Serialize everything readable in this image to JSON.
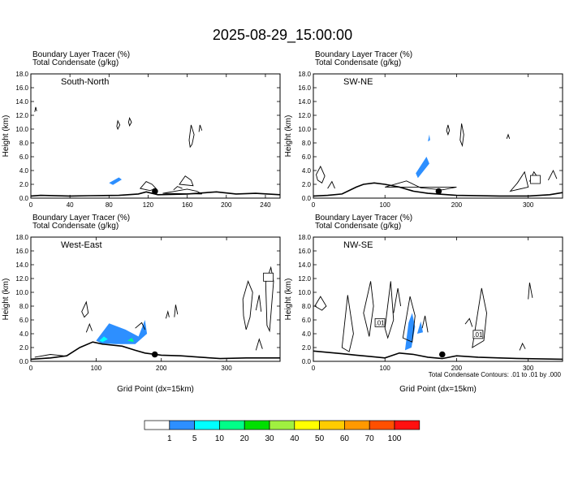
{
  "title": "2025-08-29_15:00:00",
  "colors": {
    "bins": [
      "#ffffff",
      "#2d8fff",
      "#00ffff",
      "#00ff88",
      "#00e000",
      "#a0f040",
      "#ffff00",
      "#ffcc00",
      "#ff9900",
      "#ff5000",
      "#ff1010"
    ],
    "tracer_blue": "#2d8fff",
    "tracer_cyan": "#00ffff",
    "tracer_green": "#00ff88"
  },
  "colorbar": {
    "labels": [
      "1",
      "5",
      "10",
      "20",
      "30",
      "40",
      "50",
      "60",
      "70",
      "100"
    ]
  },
  "footnote": "Total Condensate Contours: .01 to .01 by .000",
  "chart_data": [
    {
      "type": "contour",
      "panel": "South-North",
      "header1": "Boundary Layer Tracer   (%)",
      "header2": "Total Condensate   (g/kg)",
      "ylabel": "Height (km)",
      "xlabel": "",
      "xlim": [
        0,
        255
      ],
      "ylim": [
        0,
        18
      ],
      "xticks": [
        0,
        40,
        80,
        120,
        160,
        200,
        240
      ],
      "yticks": [
        "0.0",
        "2.0",
        "4.0",
        "6.0",
        "8.0",
        "10.0",
        "12.0",
        "14.0",
        "16.0",
        "18.0"
      ],
      "terrain": [
        [
          0,
          0.3
        ],
        [
          10,
          0.4
        ],
        [
          40,
          0.3
        ],
        [
          60,
          0.35
        ],
        [
          90,
          0.4
        ],
        [
          110,
          0.6
        ],
        [
          118,
          0.9
        ],
        [
          130,
          0.5
        ],
        [
          160,
          0.6
        ],
        [
          190,
          0.9
        ],
        [
          210,
          0.6
        ],
        [
          230,
          0.7
        ],
        [
          255,
          0.5
        ]
      ],
      "marker": [
        127,
        1.0
      ],
      "tracer": [
        {
          "level": "5",
          "points": [
            [
              80,
              2.2
            ],
            [
              90,
              3.0
            ],
            [
              93,
              2.7
            ],
            [
              84,
              1.9
            ]
          ]
        }
      ],
      "condensate_contours": [
        [
          [
            4,
            12.5
          ],
          [
            5,
            13.2
          ],
          [
            6,
            12.6
          ]
        ],
        [
          [
            88,
            10.4
          ],
          [
            89,
            11.2
          ],
          [
            91,
            10.6
          ],
          [
            89,
            10.0
          ]
        ],
        [
          [
            100,
            11.0
          ],
          [
            101,
            11.6
          ],
          [
            103,
            11.0
          ],
          [
            101,
            10.5
          ]
        ],
        [
          [
            112,
            1.4
          ],
          [
            118,
            2.4
          ],
          [
            124,
            2.0
          ],
          [
            128,
            1.4
          ],
          [
            122,
            1.1
          ]
        ],
        [
          [
            152,
            2.0
          ],
          [
            158,
            3.2
          ],
          [
            164,
            2.6
          ],
          [
            166,
            1.8
          ]
        ],
        [
          [
            162,
            8.4
          ],
          [
            164,
            10.6
          ],
          [
            167,
            9.2
          ],
          [
            165,
            7.8
          ],
          [
            163,
            7.4
          ]
        ],
        [
          [
            172,
            9.6
          ],
          [
            173,
            10.6
          ],
          [
            175,
            9.8
          ]
        ],
        [
          [
            146,
            1.2
          ],
          [
            150,
            1.7
          ],
          [
            155,
            1.4
          ]
        ],
        [
          [
            135,
            0.7
          ],
          [
            160,
            1.3
          ],
          [
            170,
            1.0
          ],
          [
            175,
            0.6
          ]
        ]
      ]
    },
    {
      "type": "contour",
      "panel": "SW-NE",
      "header1": "Boundary Layer Tracer   (%)",
      "header2": "Total Condensate   (g/kg)",
      "ylabel": "Height (km)",
      "xlabel": "",
      "xlim": [
        0,
        348
      ],
      "ylim": [
        0,
        18
      ],
      "xticks": [
        0,
        100,
        200,
        300
      ],
      "yticks": [
        "0.0",
        "2.0",
        "4.0",
        "6.0",
        "8.0",
        "10.0",
        "12.0",
        "14.0",
        "16.0",
        "18.0"
      ],
      "terrain": [
        [
          0,
          0.3
        ],
        [
          20,
          0.4
        ],
        [
          40,
          0.6
        ],
        [
          60,
          1.6
        ],
        [
          70,
          2.0
        ],
        [
          85,
          2.2
        ],
        [
          100,
          2.0
        ],
        [
          120,
          1.6
        ],
        [
          140,
          1.0
        ],
        [
          160,
          0.7
        ],
        [
          200,
          0.4
        ],
        [
          260,
          0.3
        ],
        [
          300,
          0.3
        ],
        [
          330,
          0.5
        ],
        [
          348,
          0.8
        ]
      ],
      "marker": [
        175,
        1.0
      ],
      "tracer": [
        {
          "level": "5",
          "points": [
            [
              143,
              3.6
            ],
            [
              158,
              6.0
            ],
            [
              162,
              5.0
            ],
            [
              146,
              2.9
            ]
          ]
        },
        {
          "level": "5",
          "points": [
            [
              160,
              8.2
            ],
            [
              162,
              9.2
            ],
            [
              163,
              8.4
            ]
          ]
        }
      ],
      "condensate_contours": [
        [
          [
            4,
            3.4
          ],
          [
            10,
            4.6
          ],
          [
            16,
            3.2
          ],
          [
            12,
            2.2
          ],
          [
            6,
            2.6
          ]
        ],
        [
          [
            20,
            1.4
          ],
          [
            26,
            2.4
          ],
          [
            30,
            1.4
          ]
        ],
        [
          [
            100,
            1.6
          ],
          [
            130,
            2.5
          ],
          [
            150,
            1.5
          ],
          [
            180,
            1.2
          ],
          [
            200,
            1.6
          ]
        ],
        [
          [
            186,
            9.8
          ],
          [
            188,
            10.6
          ],
          [
            190,
            9.8
          ],
          [
            188,
            9.2
          ]
        ],
        [
          [
            205,
            8.4
          ],
          [
            207,
            10.8
          ],
          [
            210,
            9.2
          ],
          [
            208,
            7.6
          ]
        ],
        [
          [
            275,
            1.0
          ],
          [
            285,
            2.2
          ],
          [
            295,
            3.8
          ],
          [
            300,
            1.6
          ]
        ],
        [
          [
            302,
            2.4
          ],
          [
            308,
            3.8
          ],
          [
            316,
            2.6
          ]
        ],
        [
          [
            328,
            2.6
          ],
          [
            335,
            4.0
          ],
          [
            340,
            2.8
          ]
        ],
        [
          [
            270,
            8.6
          ],
          [
            272,
            9.2
          ],
          [
            274,
            8.6
          ]
        ]
      ],
      "boxes": [
        [
          310,
          2.7,
          ""
        ]
      ]
    },
    {
      "type": "contour",
      "panel": "West-East",
      "header1": "Boundary Layer Tracer   (%)",
      "header2": "Total Condensate   (g/kg)",
      "ylabel": "Height (km)",
      "xlabel": "Grid Point (dx=15km)",
      "xlim": [
        0,
        382
      ],
      "ylim": [
        0,
        18
      ],
      "xticks": [
        0,
        100,
        200,
        300
      ],
      "yticks": [
        "0.0",
        "2.0",
        "4.0",
        "6.0",
        "8.0",
        "10.0",
        "12.0",
        "14.0",
        "16.0",
        "18.0"
      ],
      "terrain": [
        [
          0,
          0.3
        ],
        [
          30,
          0.5
        ],
        [
          55,
          0.8
        ],
        [
          75,
          2.0
        ],
        [
          95,
          2.8
        ],
        [
          110,
          2.5
        ],
        [
          140,
          2.2
        ],
        [
          160,
          1.6
        ],
        [
          175,
          1.2
        ],
        [
          200,
          0.9
        ],
        [
          230,
          0.8
        ],
        [
          260,
          0.6
        ],
        [
          290,
          0.4
        ],
        [
          330,
          0.5
        ],
        [
          382,
          0.5
        ]
      ],
      "marker": [
        190,
        1.0
      ],
      "tracer": [
        {
          "level": "5",
          "points": [
            [
              100,
              3.0
            ],
            [
              120,
              5.5
            ],
            [
              145,
              4.6
            ],
            [
              165,
              3.6
            ],
            [
              175,
              6.0
            ],
            [
              178,
              4.0
            ],
            [
              160,
              2.5
            ],
            [
              130,
              2.5
            ],
            [
              108,
              2.6
            ]
          ]
        },
        {
          "level": "10",
          "points": [
            [
              105,
              3.0
            ],
            [
              112,
              3.6
            ],
            [
              118,
              3.2
            ],
            [
              110,
              2.8
            ]
          ]
        },
        {
          "level": "20",
          "points": [
            [
              148,
              3.0
            ],
            [
              155,
              3.4
            ],
            [
              158,
              2.8
            ]
          ]
        }
      ],
      "condensate_contours": [
        [
          [
            78,
            7.2
          ],
          [
            85,
            8.6
          ],
          [
            88,
            7.0
          ],
          [
            82,
            6.4
          ]
        ],
        [
          [
            85,
            4.2
          ],
          [
            90,
            5.4
          ],
          [
            94,
            4.4
          ]
        ],
        [
          [
            160,
            4.8
          ],
          [
            170,
            5.6
          ],
          [
            175,
            4.6
          ]
        ],
        [
          [
            207,
            6.2
          ],
          [
            210,
            7.2
          ],
          [
            212,
            6.4
          ]
        ],
        [
          [
            220,
            6.4
          ],
          [
            222,
            8.2
          ],
          [
            225,
            6.8
          ]
        ],
        [
          [
            325,
            9.0
          ],
          [
            333,
            11.6
          ],
          [
            340,
            10.0
          ],
          [
            336,
            6.4
          ],
          [
            330,
            4.6
          ],
          [
            326,
            6.6
          ]
        ],
        [
          [
            345,
            7.4
          ],
          [
            350,
            9.6
          ],
          [
            353,
            7.2
          ]
        ],
        [
          [
            360,
            11.4
          ],
          [
            368,
            13.6
          ],
          [
            372,
            11.6
          ],
          [
            366,
            4.4
          ],
          [
            362,
            5.2
          ]
        ],
        [
          [
            345,
            1.6
          ],
          [
            350,
            3.2
          ],
          [
            355,
            1.8
          ]
        ],
        [
          [
            6,
            0.6
          ],
          [
            30,
            1.0
          ],
          [
            50,
            0.8
          ]
        ]
      ],
      "boxes": [
        [
          364,
          12.2,
          ""
        ]
      ]
    },
    {
      "type": "contour",
      "panel": "NW-SE",
      "header1": "Boundary Layer Tracer   (%)",
      "header2": "Total Condensate   (g/kg)",
      "ylabel": "Height (km)",
      "xlabel": "Grid Point (dx=15km)",
      "xlim": [
        0,
        348
      ],
      "ylim": [
        0,
        18
      ],
      "xticks": [
        0,
        100,
        200,
        300
      ],
      "yticks": [
        "0.0",
        "2.0",
        "4.0",
        "6.0",
        "8.0",
        "10.0",
        "12.0",
        "14.0",
        "16.0",
        "18.0"
      ],
      "terrain": [
        [
          0,
          1.5
        ],
        [
          20,
          1.3
        ],
        [
          40,
          1.1
        ],
        [
          60,
          0.9
        ],
        [
          80,
          0.7
        ],
        [
          100,
          0.5
        ],
        [
          120,
          1.2
        ],
        [
          140,
          1.0
        ],
        [
          160,
          0.6
        ],
        [
          180,
          0.4
        ],
        [
          200,
          0.8
        ],
        [
          230,
          0.6
        ],
        [
          260,
          0.5
        ],
        [
          290,
          0.4
        ],
        [
          348,
          0.3
        ]
      ],
      "marker": [
        180,
        1.0
      ],
      "tracer": [
        {
          "level": "5",
          "points": [
            [
              128,
              1.6
            ],
            [
              133,
              5.6
            ],
            [
              138,
              7.0
            ],
            [
              142,
              5.0
            ],
            [
              137,
              2.0
            ]
          ]
        },
        {
          "level": "5",
          "points": [
            [
              145,
              4.0
            ],
            [
              150,
              5.8
            ],
            [
              153,
              4.2
            ]
          ]
        }
      ],
      "condensate_contours": [
        [
          [
            2,
            8.0
          ],
          [
            10,
            9.4
          ],
          [
            18,
            8.0
          ],
          [
            12,
            7.4
          ]
        ],
        [
          [
            40,
            2.0
          ],
          [
            48,
            9.6
          ],
          [
            56,
            4.0
          ],
          [
            50,
            1.4
          ]
        ],
        [
          [
            70,
            7.0
          ],
          [
            80,
            11.6
          ],
          [
            84,
            8.0
          ],
          [
            78,
            3.6
          ]
        ],
        [
          [
            100,
            4.8
          ],
          [
            108,
            11.6
          ],
          [
            112,
            6.0
          ],
          [
            104,
            3.4
          ]
        ],
        [
          [
            112,
            7.0
          ],
          [
            118,
            10.6
          ],
          [
            122,
            8.0
          ]
        ],
        [
          [
            125,
            3.4
          ],
          [
            135,
            9.4
          ],
          [
            142,
            6.6
          ],
          [
            138,
            2.8
          ]
        ],
        [
          [
            152,
            4.8
          ],
          [
            156,
            6.6
          ],
          [
            160,
            4.2
          ]
        ],
        [
          [
            212,
            5.4
          ],
          [
            218,
            6.2
          ],
          [
            222,
            5.0
          ]
        ],
        [
          [
            222,
            2.0
          ],
          [
            235,
            10.6
          ],
          [
            242,
            7.0
          ],
          [
            238,
            3.0
          ]
        ],
        [
          [
            300,
            9.0
          ],
          [
            302,
            11.4
          ],
          [
            306,
            9.2
          ]
        ],
        [
          [
            288,
            1.6
          ],
          [
            292,
            2.6
          ],
          [
            296,
            1.8
          ]
        ]
      ],
      "boxes": [
        [
          93,
          5.6,
          ".01"
        ],
        [
          230,
          3.9,
          ".01"
        ]
      ]
    }
  ]
}
